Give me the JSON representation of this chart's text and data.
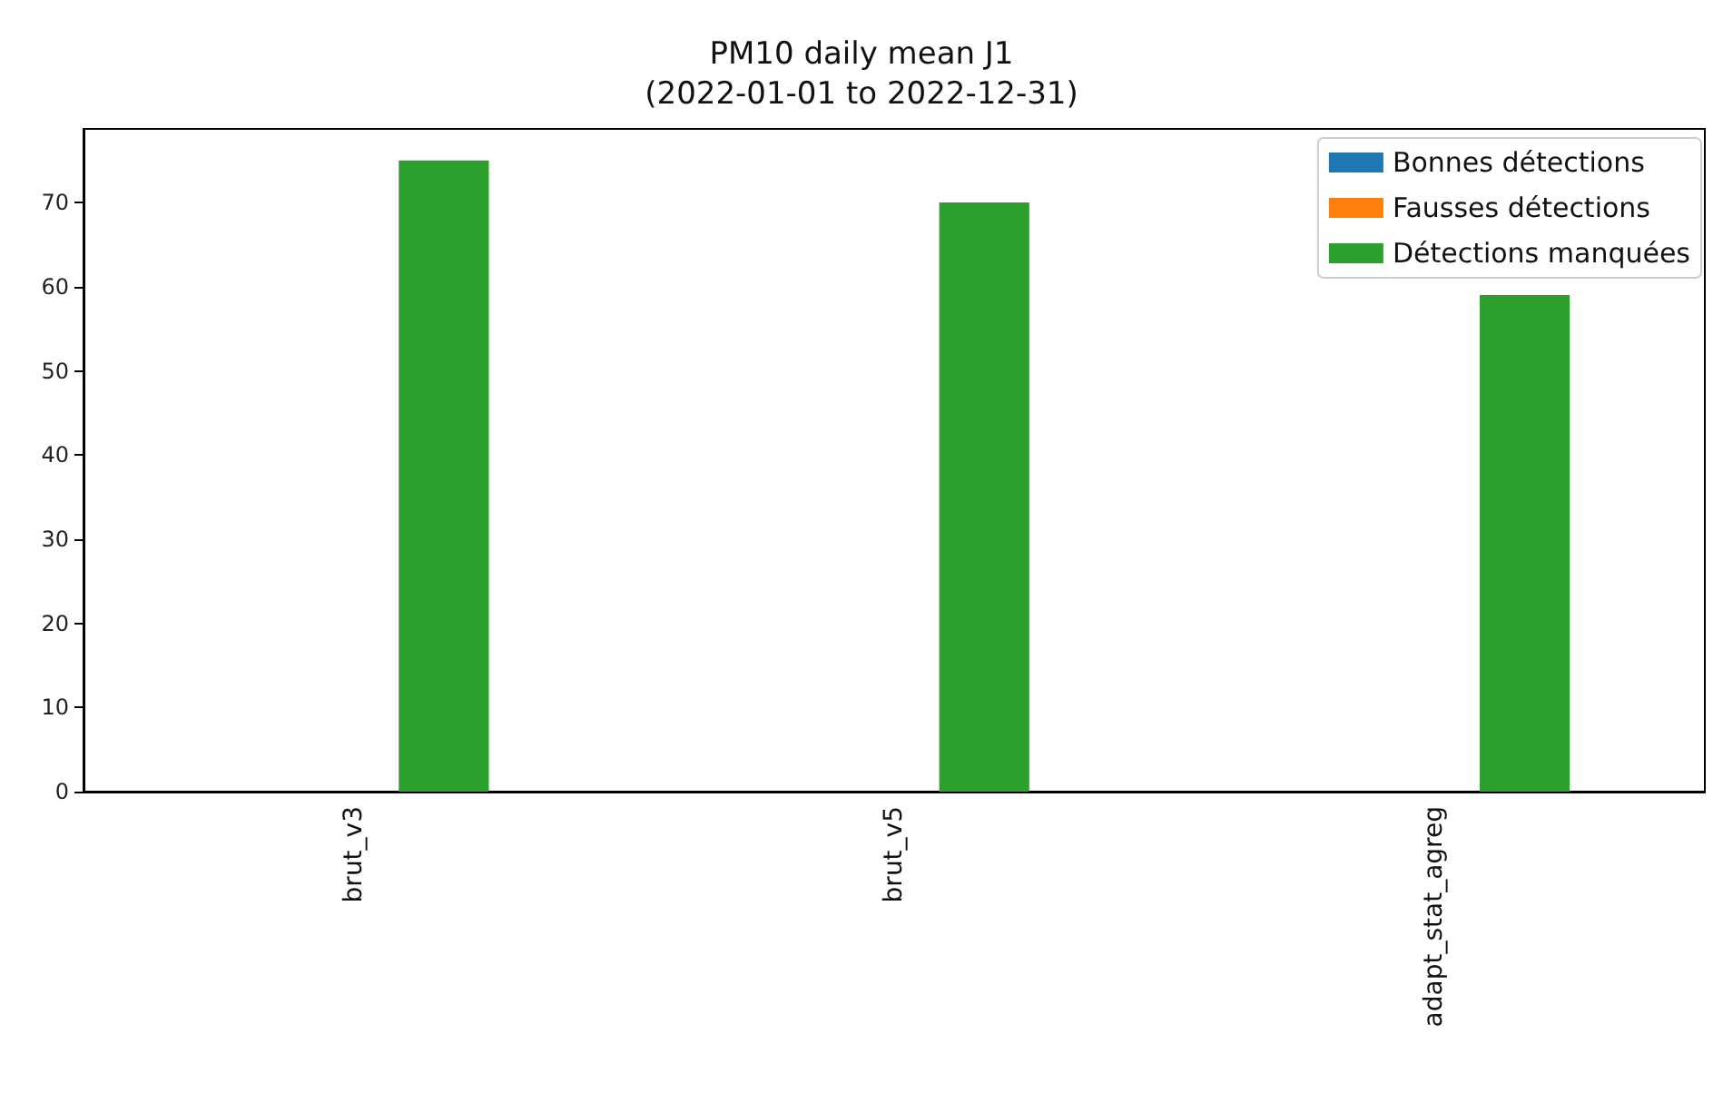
{
  "chart_data": {
    "type": "bar",
    "title": "PM10 daily mean J1\n(2022-01-01 to 2022-12-31)",
    "categories": [
      "brut_v3",
      "brut_v5",
      "adapt_stat_agreg"
    ],
    "series": [
      {
        "name": "Bonnes détections",
        "color": "#1f77b4",
        "values": [
          0,
          0,
          0
        ]
      },
      {
        "name": "Fausses détections",
        "color": "#ff7f0e",
        "values": [
          0,
          0,
          0
        ]
      },
      {
        "name": "Détections manquées",
        "color": "#2ca02c",
        "values": [
          75,
          70,
          59
        ]
      }
    ],
    "ylim": [
      0,
      78.75
    ],
    "yticks": [
      0,
      10,
      20,
      30,
      40,
      50,
      60,
      70
    ],
    "grid": false,
    "legend": "top right"
  }
}
